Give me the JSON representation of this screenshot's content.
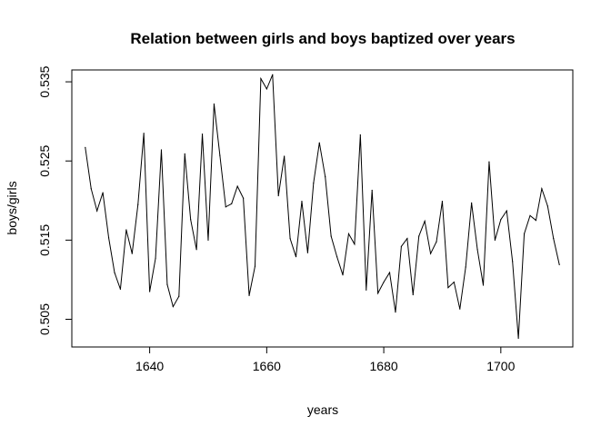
{
  "chart_data": {
    "type": "line",
    "title": "Relation between girls and boys baptized over years",
    "xlabel": "years",
    "ylabel": "boys/girls",
    "xlim": [
      1626.7,
      1712.3
    ],
    "ylim": [
      0.5015,
      0.5365
    ],
    "x_ticks": [
      1640,
      1660,
      1680,
      1700
    ],
    "x_tick_labels": [
      "1640",
      "1660",
      "1680",
      "1700"
    ],
    "y_ticks": [
      0.505,
      0.515,
      0.525,
      0.535
    ],
    "y_tick_labels": [
      "0.505",
      "0.515",
      "0.525",
      "0.535"
    ],
    "grid": false,
    "series": [
      {
        "name": "boys/girls",
        "color": "#000000",
        "x": [
          1629,
          1630,
          1631,
          1632,
          1633,
          1634,
          1635,
          1636,
          1637,
          1638,
          1639,
          1640,
          1641,
          1642,
          1643,
          1644,
          1645,
          1646,
          1647,
          1648,
          1649,
          1650,
          1651,
          1652,
          1653,
          1654,
          1655,
          1656,
          1657,
          1658,
          1659,
          1660,
          1661,
          1662,
          1663,
          1664,
          1665,
          1666,
          1667,
          1668,
          1669,
          1670,
          1671,
          1672,
          1673,
          1674,
          1675,
          1676,
          1677,
          1678,
          1679,
          1680,
          1681,
          1682,
          1683,
          1684,
          1685,
          1686,
          1687,
          1688,
          1689,
          1690,
          1691,
          1692,
          1693,
          1694,
          1695,
          1696,
          1697,
          1698,
          1699,
          1700,
          1701,
          1702,
          1703,
          1704,
          1705,
          1706,
          1707,
          1708,
          1709,
          1710
        ],
        "y": [
          0.5267,
          0.5215,
          0.5187,
          0.521,
          0.5153,
          0.5109,
          0.5088,
          0.5163,
          0.5133,
          0.5195,
          0.5285,
          0.5085,
          0.5127,
          0.5264,
          0.5094,
          0.5066,
          0.5079,
          0.5259,
          0.5176,
          0.5138,
          0.5284,
          0.515,
          0.5322,
          0.5257,
          0.5192,
          0.5196,
          0.5218,
          0.5203,
          0.508,
          0.5117,
          0.5354,
          0.5341,
          0.5359,
          0.5206,
          0.5256,
          0.5152,
          0.5129,
          0.5199,
          0.5134,
          0.5222,
          0.5273,
          0.523,
          0.5155,
          0.5129,
          0.5106,
          0.5158,
          0.5145,
          0.5283,
          0.5087,
          0.5213,
          0.5083,
          0.5097,
          0.5109,
          0.5059,
          0.5142,
          0.5152,
          0.5081,
          0.5155,
          0.5174,
          0.5133,
          0.5148,
          0.5199,
          0.509,
          0.5097,
          0.5063,
          0.5116,
          0.5197,
          0.5138,
          0.5093,
          0.5249,
          0.515,
          0.5176,
          0.5187,
          0.5123,
          0.5026,
          0.5158,
          0.5181,
          0.5175,
          0.5215,
          0.5193,
          0.5152,
          0.5119
        ]
      }
    ]
  }
}
